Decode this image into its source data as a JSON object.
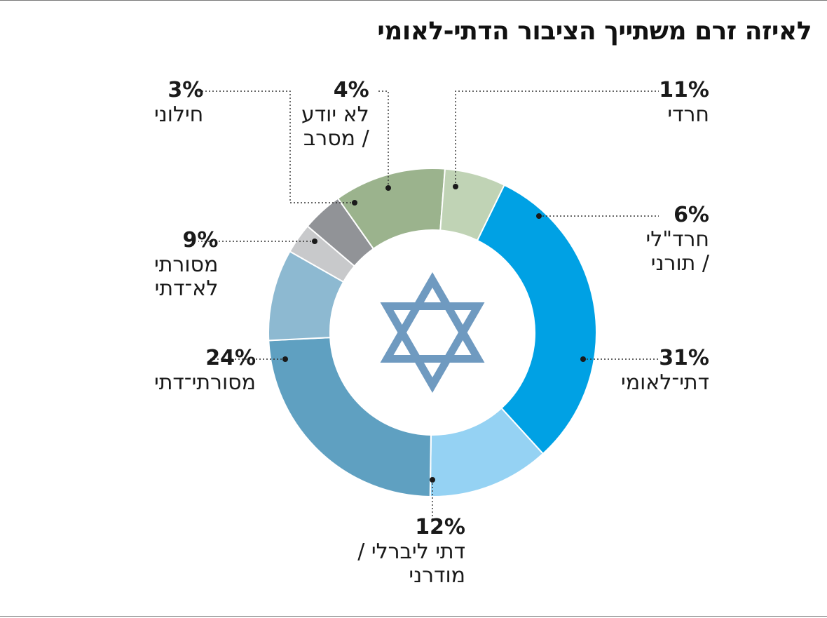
{
  "chart_data": {
    "type": "donut",
    "title": "לאיזה זרם משתייך הציבור הדתי-לאומי",
    "segments": [
      {
        "label": "דתי־לאומי",
        "lines": [
          "דתי־לאומי"
        ],
        "value": 31,
        "pct_text": "31%",
        "color": "#00a1e4"
      },
      {
        "label": "דתי ליברלי / מודרני",
        "lines": [
          "דתי ליברלי /",
          "מודרני"
        ],
        "value": 12,
        "pct_text": "12%",
        "color": "#95d2f3"
      },
      {
        "label": "מסורתי־דתי",
        "lines": [
          "מסורתי־דתי"
        ],
        "value": 24,
        "pct_text": "24%",
        "color": "#5fa0c1"
      },
      {
        "label": "מסורתי לא־דתי",
        "lines": [
          "מסורתי",
          "לא־דתי"
        ],
        "value": 9,
        "pct_text": "9%",
        "color": "#8db9d1"
      },
      {
        "label": "חילוני",
        "lines": [
          "חילוני"
        ],
        "value": 3,
        "pct_text": "3%",
        "color": "#c8c9cb"
      },
      {
        "label": "לא יודע / מסרב",
        "lines": [
          "לא יודע",
          "/ מסרב"
        ],
        "value": 4,
        "pct_text": "4%",
        "color": "#919397"
      },
      {
        "label": "חרדי",
        "lines": [
          "חרדי"
        ],
        "value": 11,
        "pct_text": "11%",
        "color": "#9bb38d"
      },
      {
        "label": "חרד\"לי / תורני",
        "lines": [
          "חרד\"לי",
          "/ תורני"
        ],
        "value": 6,
        "pct_text": "6%",
        "color": "#c0d3b5"
      }
    ],
    "center_icon": "star-of-david-icon",
    "center_icon_color": "#6f9ac0"
  }
}
